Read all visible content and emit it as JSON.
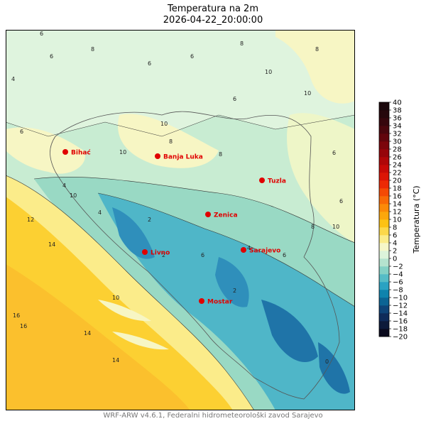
{
  "header": {
    "title": "Temperatura na 2m",
    "datetime": "2026-04-22_20:00:00"
  },
  "footer": {
    "credit": "WRF-ARW v4.6.1, Federalni hidrometeorološki zavod Sarajevo"
  },
  "colorbar": {
    "label": "Temperatura (°C)",
    "min": -20,
    "max": 40,
    "step": 2,
    "ticks": [
      "40",
      "38",
      "36",
      "34",
      "32",
      "30",
      "28",
      "26",
      "24",
      "22",
      "20",
      "18",
      "16",
      "14",
      "12",
      "10",
      "8",
      "6",
      "4",
      "2",
      "0",
      "−2",
      "−4",
      "−6",
      "−8",
      "−10",
      "−12",
      "−14",
      "−16",
      "−18",
      "−20"
    ],
    "colors": [
      "#0a0a1e",
      "#0d1a3a",
      "#0f2b5a",
      "#0f4478",
      "#0c6494",
      "#0f83ad",
      "#2aa2c2",
      "#55bcc6",
      "#84d1c5",
      "#b5e3cf",
      "#dcf3da",
      "#f6f7c8",
      "#fbec8a",
      "#fcd84a",
      "#fdc214",
      "#fca70c",
      "#fb8a08",
      "#f86a06",
      "#f44a05",
      "#ec2a05",
      "#dc1506",
      "#c80a07",
      "#b00708",
      "#96050a",
      "#7c050b",
      "#62050c",
      "#4a060d",
      "#36060d",
      "#26070c",
      "#1a070b"
    ]
  },
  "cities": [
    {
      "name": "Bihać"
    },
    {
      "name": "Banja Luka"
    },
    {
      "name": "Tuzla"
    },
    {
      "name": "Zenica"
    },
    {
      "name": "Livno"
    },
    {
      "name": "Sarajevo"
    },
    {
      "name": "Mostar"
    }
  ],
  "contour_labels": [
    "6",
    "6",
    "8",
    "6",
    "6",
    "8",
    "10",
    "10",
    "6",
    "10",
    "8",
    "8",
    "10",
    "6",
    "8",
    "4",
    "6",
    "6",
    "8",
    "10",
    "10",
    "12",
    "14",
    "14",
    "16",
    "16",
    "14",
    "2",
    "2",
    "2",
    "4",
    "4",
    "4",
    "6",
    "6",
    "0",
    "10"
  ],
  "colors": {
    "marker": "#e00000",
    "city_text": "#e00000",
    "sea_deep": "#fbc02d",
    "sea_shallow": "#fdd94a"
  }
}
